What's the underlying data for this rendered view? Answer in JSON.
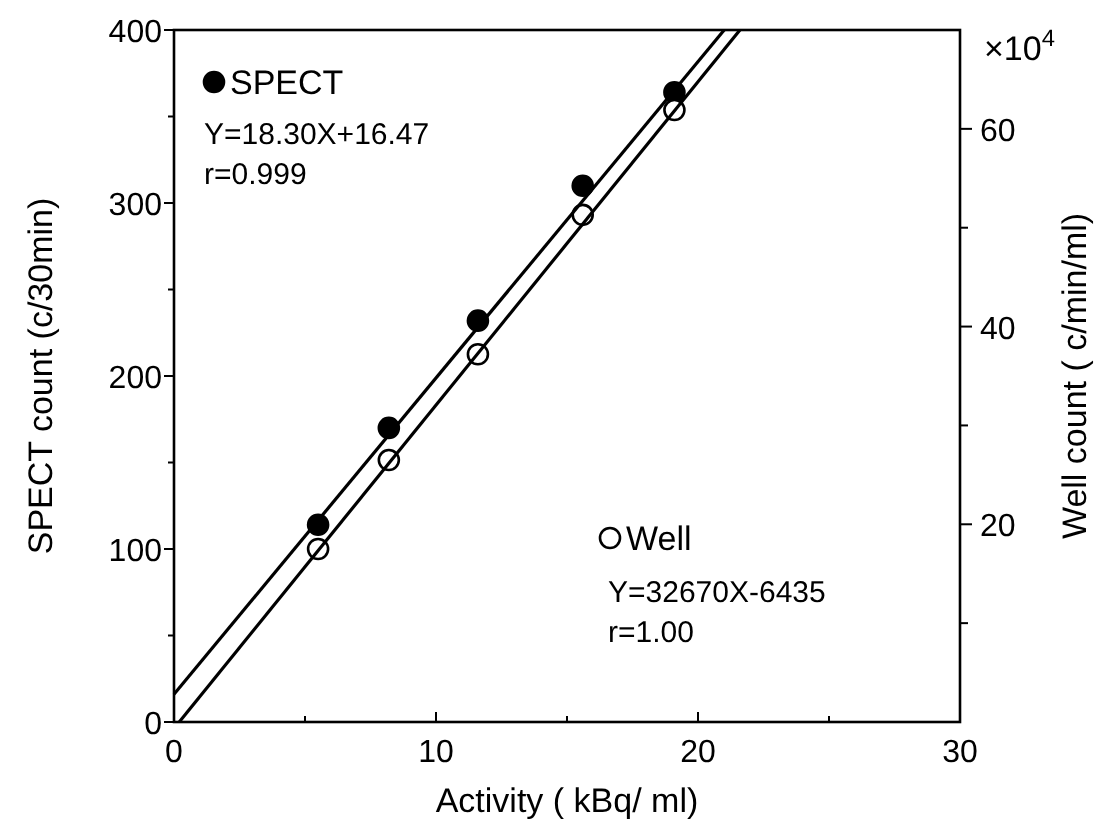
{
  "chart_data": {
    "type": "scatter",
    "xlabel": "Activity ( kBq/ ml)",
    "ylabel": "SPECT count (c/30min)",
    "y2label": "Well count ( c/min/ml)",
    "xlim": [
      0,
      30
    ],
    "xticks": [
      0,
      10,
      20,
      30
    ],
    "ylim": [
      0,
      400
    ],
    "yticks": [
      0,
      100,
      200,
      300,
      400
    ],
    "y2lim": [
      0,
      70
    ],
    "y2ticks": [
      {
        "value": 10,
        "label": null
      },
      20,
      {
        "value": 30,
        "label": null
      },
      40,
      {
        "value": 50,
        "label": null
      },
      60
    ],
    "legend": "top left",
    "grid": false,
    "series": [
      {
        "name": "SPECT",
        "color": "#000000",
        "marker": "circle",
        "x": [
          5.5,
          8.2,
          11.6,
          15.6,
          19.1
        ],
        "values": [
          114,
          170,
          232,
          310,
          364
        ]
      },
      {
        "name": "Well",
        "color": "#000000",
        "marker": "circle",
        "axis": "y2",
        "x": [
          5.5,
          8.2,
          11.6,
          15.6,
          19.1
        ],
        "values": [
          17.5,
          26.5,
          37.2,
          51.3,
          61.9
        ]
      },
      {
        "type": "line",
        "color": "#000000",
        "marker": "none",
        "x": [
          0,
          21
        ],
        "values": [
          16,
          400
        ]
      },
      {
        "type": "line",
        "color": "#000000",
        "marker": "none",
        "axis": "y2",
        "x": [
          0.2,
          21.6
        ],
        "values": [
          0,
          70
        ]
      }
    ],
    "annotations": [
      "×10$^{4}$",
      "Y=18.30X+16.47",
      "r=0.999",
      "Y=32670X-6435",
      "r=1.00"
    ]
  }
}
